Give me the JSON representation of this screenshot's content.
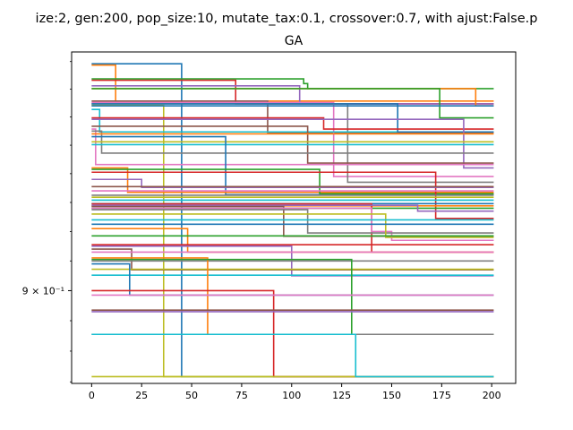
{
  "suptitle": "ize:2, gen:200, pop_size:10, mutate_tax:0.1, crossover:0.7, with ajust:False.p",
  "chart_data": {
    "type": "line",
    "title": "GA",
    "xlabel": "",
    "ylabel": "",
    "xlim": [
      -10,
      212
    ],
    "ylim": [
      0.8695,
      0.9835
    ],
    "yscale": "log",
    "grid": false,
    "legend": "none",
    "x_ticks": [
      0,
      25,
      50,
      75,
      100,
      125,
      150,
      175,
      200
    ],
    "x_tick_labels": [
      "0",
      "25",
      "50",
      "75",
      "100",
      "125",
      "150",
      "175",
      "200"
    ],
    "y_ticks": [
      0.9
    ],
    "y_tick_labels": [
      "9 × 10⁻¹"
    ],
    "colors": [
      "#1f77b4",
      "#ff7f0e",
      "#2ca02c",
      "#d62728",
      "#9467bd",
      "#8c564b",
      "#e377c2",
      "#7f7f7f",
      "#bcbd22",
      "#17becf"
    ],
    "series": [
      {
        "x": [
          0,
          1,
          1,
          45,
          45,
          201
        ],
        "y": [
          0.9792,
          0.9792,
          0.9792,
          0.9792,
          0.8717,
          0.8717
        ]
      },
      {
        "x": [
          0,
          12,
          12,
          201
        ],
        "y": [
          0.9787,
          0.9787,
          0.9657,
          0.9657
        ]
      },
      {
        "x": [
          0,
          106,
          106,
          108,
          108,
          201
        ],
        "y": [
          0.9737,
          0.9737,
          0.972,
          0.972,
          0.9702,
          0.9702
        ]
      },
      {
        "x": [
          0,
          72,
          72,
          201
        ],
        "y": [
          0.9732,
          0.9732,
          0.9647,
          0.9647
        ]
      },
      {
        "x": [
          0,
          104,
          104,
          201
        ],
        "y": [
          0.9712,
          0.9712,
          0.9647,
          0.9647
        ]
      },
      {
        "x": [
          0,
          88,
          88,
          201
        ],
        "y": [
          0.9657,
          0.9657,
          0.9545,
          0.9545
        ]
      },
      {
        "x": [
          0,
          121,
          121,
          201
        ],
        "y": [
          0.9652,
          0.9652,
          0.939,
          0.939
        ]
      },
      {
        "x": [
          0,
          128,
          128,
          201
        ],
        "y": [
          0.9647,
          0.9647,
          0.937,
          0.937
        ]
      },
      {
        "x": [
          0,
          34,
          34,
          36,
          36,
          201
        ],
        "y": [
          0.9642,
          0.9642,
          0.9642,
          0.9642,
          0.8717,
          0.8717
        ]
      },
      {
        "x": [
          0,
          4,
          4,
          201
        ],
        "y": [
          0.9627,
          0.9627,
          0.9547,
          0.9547
        ]
      },
      {
        "x": [
          0,
          153,
          153,
          201
        ],
        "y": [
          0.9647,
          0.9647,
          0.9547,
          0.9547
        ]
      },
      {
        "x": [
          0,
          192,
          192,
          201
        ],
        "y": [
          0.9702,
          0.9702,
          0.964,
          0.964
        ]
      },
      {
        "x": [
          0,
          174,
          174,
          201
        ],
        "y": [
          0.9702,
          0.9702,
          0.9597,
          0.9597
        ]
      },
      {
        "x": [
          0,
          116,
          116,
          201
        ],
        "y": [
          0.9597,
          0.9597,
          0.9557,
          0.9557
        ]
      },
      {
        "x": [
          0,
          186,
          186,
          201
        ],
        "y": [
          0.9592,
          0.9592,
          0.942,
          0.942
        ]
      },
      {
        "x": [
          0,
          108,
          108,
          201
        ],
        "y": [
          0.9567,
          0.9567,
          0.9437,
          0.9437
        ]
      },
      {
        "x": [
          0,
          2,
          2,
          201
        ],
        "y": [
          0.9557,
          0.9557,
          0.9432,
          0.9432
        ]
      },
      {
        "x": [
          0,
          5,
          5,
          201
        ],
        "y": [
          0.955,
          0.955,
          0.9472,
          0.9472
        ]
      },
      {
        "x": [
          0,
          201
        ],
        "y": [
          0.9512,
          0.9512
        ]
      },
      {
        "x": [
          0,
          201
        ],
        "y": [
          0.9502,
          0.9502
        ]
      },
      {
        "x": [
          0,
          67,
          67,
          201
        ],
        "y": [
          0.953,
          0.953,
          0.9327,
          0.9327
        ]
      },
      {
        "x": [
          0,
          18,
          18,
          201
        ],
        "y": [
          0.942,
          0.942,
          0.9335,
          0.9335
        ]
      },
      {
        "x": [
          0,
          114,
          114,
          201
        ],
        "y": [
          0.9415,
          0.9415,
          0.933,
          0.933
        ]
      },
      {
        "x": [
          0,
          172,
          172,
          201
        ],
        "y": [
          0.9405,
          0.9405,
          0.9245,
          0.9245
        ]
      },
      {
        "x": [
          0,
          25,
          25,
          201
        ],
        "y": [
          0.938,
          0.938,
          0.9352,
          0.9352
        ]
      },
      {
        "x": [
          0,
          201
        ],
        "y": [
          0.9355,
          0.9355
        ]
      },
      {
        "x": [
          0,
          201
        ],
        "y": [
          0.934,
          0.934
        ]
      },
      {
        "x": [
          0,
          201
        ],
        "y": [
          0.9325,
          0.9325
        ]
      },
      {
        "x": [
          0,
          201
        ],
        "y": [
          0.9318,
          0.9318
        ]
      },
      {
        "x": [
          0,
          201
        ],
        "y": [
          0.9308,
          0.9308
        ]
      },
      {
        "x": [
          0,
          201
        ],
        "y": [
          0.9296,
          0.9296
        ]
      },
      {
        "x": [
          0,
          201
        ],
        "y": [
          0.9288,
          0.9288
        ]
      },
      {
        "x": [
          0,
          201
        ],
        "y": [
          0.928,
          0.928
        ]
      },
      {
        "x": [
          0,
          140,
          140,
          201
        ],
        "y": [
          0.9295,
          0.9295,
          0.913,
          0.913
        ]
      },
      {
        "x": [
          0,
          163,
          163,
          201
        ],
        "y": [
          0.929,
          0.929,
          0.927,
          0.927
        ]
      },
      {
        "x": [
          0,
          96,
          96,
          201
        ],
        "y": [
          0.9286,
          0.9286,
          0.9184,
          0.9184
        ]
      },
      {
        "x": [
          0,
          140,
          140,
          150,
          150,
          201
        ],
        "y": [
          0.928,
          0.928,
          0.92,
          0.92,
          0.917,
          0.917
        ]
      },
      {
        "x": [
          0,
          108,
          108,
          201
        ],
        "y": [
          0.9275,
          0.9275,
          0.9195,
          0.9195
        ]
      },
      {
        "x": [
          0,
          147,
          147,
          201
        ],
        "y": [
          0.926,
          0.926,
          0.918,
          0.918
        ]
      },
      {
        "x": [
          0,
          201
        ],
        "y": [
          0.924,
          0.924
        ]
      },
      {
        "x": [
          0,
          201
        ],
        "y": [
          0.9225,
          0.9225
        ]
      },
      {
        "x": [
          0,
          48,
          48,
          201
        ],
        "y": [
          0.921,
          0.921,
          0.913,
          0.913
        ]
      },
      {
        "x": [
          0,
          201
        ],
        "y": [
          0.9185,
          0.9185
        ]
      },
      {
        "x": [
          0,
          201
        ],
        "y": [
          0.9155,
          0.9155
        ]
      },
      {
        "x": [
          0,
          100,
          100,
          201
        ],
        "y": [
          0.915,
          0.915,
          0.905,
          0.905
        ]
      },
      {
        "x": [
          0,
          20,
          20,
          201
        ],
        "y": [
          0.914,
          0.914,
          0.907,
          0.907
        ]
      },
      {
        "x": [
          0,
          201
        ],
        "y": [
          0.913,
          0.913
        ]
      },
      {
        "x": [
          0,
          201
        ],
        "y": [
          0.91,
          0.91
        ]
      },
      {
        "x": [
          0,
          201
        ],
        "y": [
          0.9072,
          0.9072
        ]
      },
      {
        "x": [
          0,
          201
        ],
        "y": [
          0.9052,
          0.9052
        ]
      },
      {
        "x": [
          0,
          19,
          19,
          201
        ],
        "y": [
          0.909,
          0.909,
          0.8985,
          0.8985
        ]
      },
      {
        "x": [
          0,
          58,
          58,
          201
        ],
        "y": [
          0.911,
          0.911,
          0.8855,
          0.8855
        ]
      },
      {
        "x": [
          0,
          130,
          130,
          201
        ],
        "y": [
          0.9105,
          0.9105,
          0.8855,
          0.8855
        ]
      },
      {
        "x": [
          0,
          91,
          91,
          201
        ],
        "y": [
          0.9,
          0.9,
          0.8717,
          0.8717
        ]
      },
      {
        "x": [
          0,
          28,
          28,
          201
        ],
        "y": [
          0.893,
          0.893,
          0.893,
          0.893
        ]
      },
      {
        "x": [
          0,
          201
        ],
        "y": [
          0.8935,
          0.8935
        ]
      },
      {
        "x": [
          0,
          201
        ],
        "y": [
          0.8985,
          0.8985
        ]
      },
      {
        "x": [
          0,
          201
        ],
        "y": [
          0.8855,
          0.8855
        ]
      },
      {
        "x": [
          0,
          201
        ],
        "y": [
          0.8717,
          0.8717
        ]
      },
      {
        "x": [
          0,
          132,
          132,
          201
        ],
        "y": [
          0.8855,
          0.8855,
          0.8717,
          0.8717
        ]
      },
      {
        "x": [
          0,
          201
        ],
        "y": [
          0.964,
          0.964
        ]
      },
      {
        "x": [
          0,
          201
        ],
        "y": [
          0.954,
          0.954
        ]
      }
    ]
  }
}
